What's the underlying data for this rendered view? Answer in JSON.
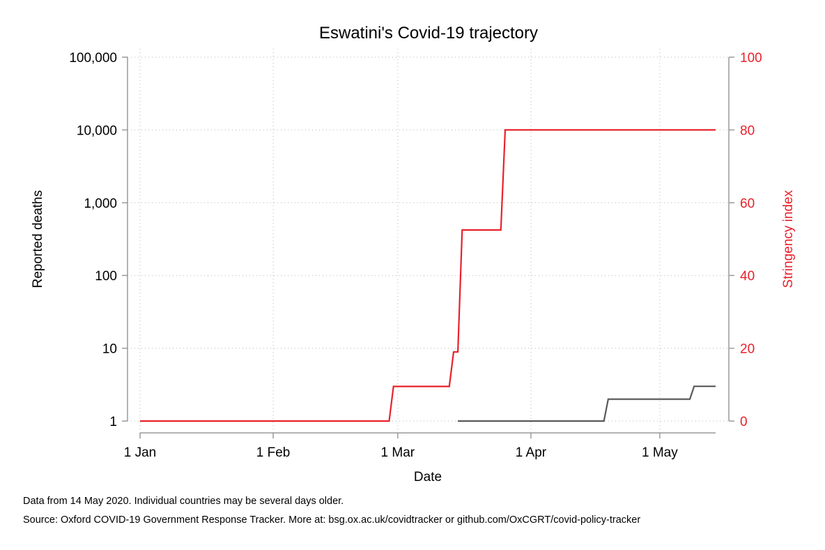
{
  "chart_data": {
    "type": "line",
    "title": "Eswatini's Covid-19 trajectory",
    "xlabel": "Date",
    "ylabel_left": "Reported deaths",
    "ylabel_right": "Stringency index",
    "x_ticks": [
      {
        "date": "2020-01-01",
        "label": "1 Jan"
      },
      {
        "date": "2020-02-01",
        "label": "1 Feb"
      },
      {
        "date": "2020-03-01",
        "label": "1 Mar"
      },
      {
        "date": "2020-04-01",
        "label": "1 Apr"
      },
      {
        "date": "2020-05-01",
        "label": "1 May"
      }
    ],
    "xlim": [
      "2020-01-01",
      "2020-05-14"
    ],
    "y_left": {
      "scale": "log",
      "ylim": [
        1,
        100000
      ],
      "ticks": [
        1,
        10,
        100,
        1000,
        10000,
        100000
      ],
      "tick_labels": [
        "1",
        "10",
        "100",
        "1,000",
        "10,000",
        "100,000"
      ]
    },
    "y_right": {
      "scale": "linear",
      "ylim": [
        0,
        100
      ],
      "ticks": [
        0,
        20,
        40,
        60,
        80,
        100
      ],
      "tick_labels": [
        "0",
        "20",
        "40",
        "60",
        "80",
        "100"
      ]
    },
    "grid": true,
    "series": [
      {
        "axis": "right",
        "color": "#e8212b",
        "step": true,
        "points": [
          [
            "2020-01-01",
            0
          ],
          [
            "2020-02-28",
            0
          ],
          [
            "2020-02-29",
            9.5
          ],
          [
            "2020-03-13",
            9.5
          ],
          [
            "2020-03-14",
            19
          ],
          [
            "2020-03-15",
            19
          ],
          [
            "2020-03-16",
            52.5
          ],
          [
            "2020-03-25",
            52.5
          ],
          [
            "2020-03-26",
            80
          ],
          [
            "2020-05-14",
            80
          ]
        ]
      },
      {
        "axis": "left",
        "color": "#595959",
        "step": true,
        "points": [
          [
            "2020-03-15",
            1
          ],
          [
            "2020-04-18",
            1
          ],
          [
            "2020-04-19",
            2
          ],
          [
            "2020-05-08",
            2
          ],
          [
            "2020-05-09",
            3
          ],
          [
            "2020-05-14",
            3
          ]
        ]
      }
    ]
  },
  "notes": {
    "line1": "Data from 14 May 2020. Individual countries may be several days older.",
    "line2": "Source: Oxford COVID-19 Government Response Tracker. More at: bsg.ox.ac.uk/covidtracker or github.com/OxCGRT/covid-policy-tracker"
  }
}
